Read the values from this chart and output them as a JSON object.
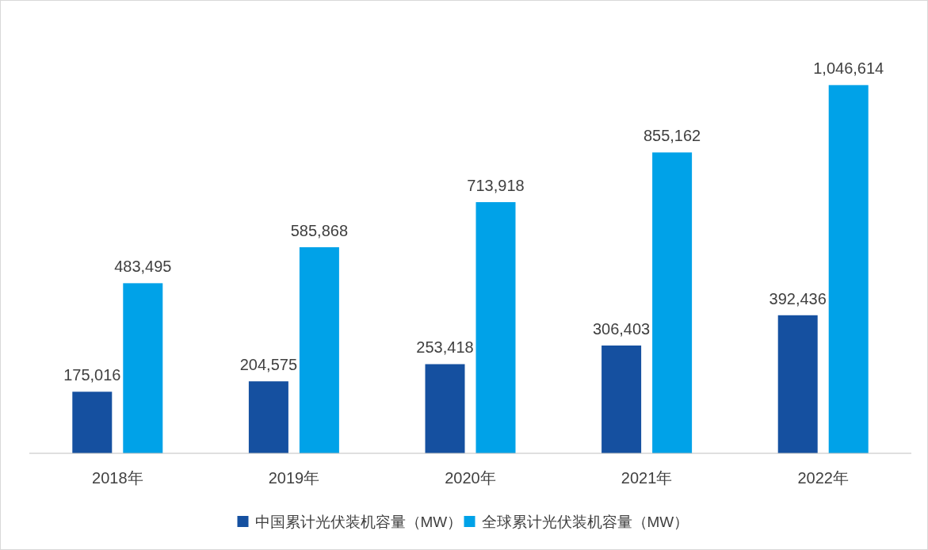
{
  "chart_data": {
    "type": "bar",
    "categories": [
      "2018年",
      "2019年",
      "2020年",
      "2021年",
      "2022年"
    ],
    "series": [
      {
        "name": "中国累计光伏装机容量（MW）",
        "color": "#1550a0",
        "values": [
          175016,
          204575,
          253418,
          306403,
          392436
        ],
        "value_labels": [
          "175,016",
          "204,575",
          "253,418",
          "306,403",
          "392,436"
        ]
      },
      {
        "name": "全球累计光伏装机容量（MW）",
        "color": "#00a2e8",
        "values": [
          483495,
          585868,
          713918,
          855162,
          1046614
        ],
        "value_labels": [
          "483,495",
          "585,868",
          "713,918",
          "855,162",
          "1,046,614"
        ]
      }
    ],
    "legend": "bottom"
  }
}
